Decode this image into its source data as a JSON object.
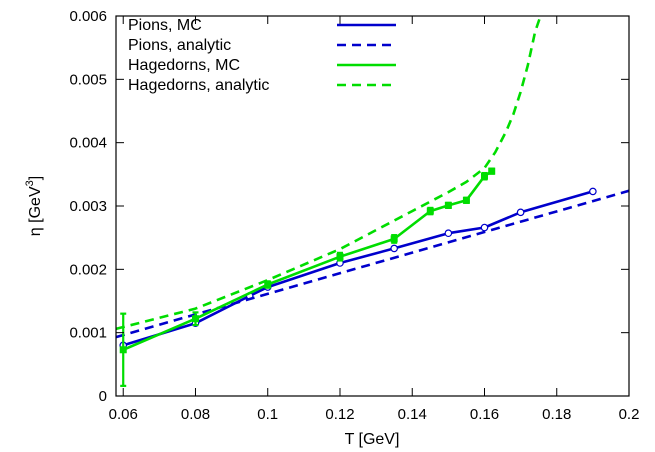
{
  "chart_data": {
    "type": "line",
    "xlabel": "T [GeV]",
    "ylabel": "η [GeV",
    "ylabel_sup": "3",
    "ylabel_close": "]",
    "xlim": [
      0.058,
      0.2
    ],
    "ylim": [
      0,
      0.006
    ],
    "x_ticks": [
      "0.06",
      "0.08",
      "0.1",
      "0.12",
      "0.14",
      "0.16",
      "0.18",
      "0.2"
    ],
    "x_tick_values": [
      0.06,
      0.08,
      0.1,
      0.12,
      0.14,
      0.16,
      0.18,
      0.2
    ],
    "y_ticks": [
      "0",
      "0.001",
      "0.002",
      "0.003",
      "0.004",
      "0.005",
      "0.006"
    ],
    "y_tick_values": [
      0,
      0.001,
      0.002,
      0.003,
      0.004,
      0.005,
      0.006
    ],
    "grid": false,
    "legend_position": "top-left",
    "series": [
      {
        "name": "Pions, MC",
        "color": "#0000cc",
        "style": "solid",
        "marker": "circle",
        "x": [
          0.06,
          0.08,
          0.095,
          0.1,
          0.12,
          0.135,
          0.15,
          0.16,
          0.17,
          0.19
        ],
        "y": [
          0.0008,
          0.00115,
          0.00158,
          0.00172,
          0.0021,
          0.00233,
          0.00257,
          0.00266,
          0.0029,
          0.00323
        ]
      },
      {
        "name": "Pions, analytic",
        "color": "#0000cc",
        "style": "dashed",
        "marker": "none",
        "x": [
          0.058,
          0.2
        ],
        "y": [
          0.00093,
          0.00324
        ]
      },
      {
        "name": "Hagedorns, MC",
        "color": "#00dd00",
        "style": "solid",
        "marker": "square",
        "x": [
          0.06,
          0.08,
          0.1,
          0.12,
          0.135,
          0.145,
          0.15,
          0.155,
          0.16,
          0.162
        ],
        "y": [
          0.00073,
          0.00122,
          0.00176,
          0.0022,
          0.00248,
          0.00292,
          0.00301,
          0.00309,
          0.00347,
          0.00355
        ],
        "yerr": [
          0.00057,
          0.0001,
          5e-05,
          6e-05,
          6e-05,
          5e-05,
          4e-05,
          4e-05,
          5e-05,
          4e-05
        ]
      },
      {
        "name": "Hagedorns, analytic",
        "color": "#00dd00",
        "style": "dashed",
        "marker": "none",
        "x": [
          0.058,
          0.08,
          0.1,
          0.12,
          0.13,
          0.14,
          0.15,
          0.155,
          0.16,
          0.163,
          0.166,
          0.168,
          0.17,
          0.172,
          0.174,
          0.1755
        ],
        "y": [
          0.00106,
          0.00138,
          0.00183,
          0.00232,
          0.00262,
          0.00292,
          0.00322,
          0.00338,
          0.0036,
          0.00385,
          0.00418,
          0.00445,
          0.0048,
          0.00522,
          0.00575,
          0.006
        ]
      }
    ]
  }
}
